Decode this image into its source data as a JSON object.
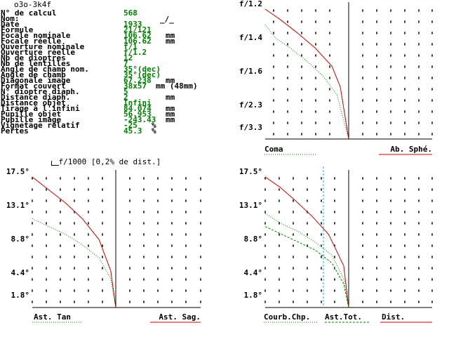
{
  "title": "o3o-3k4f",
  "signature_mark": "_/_",
  "info_rows": [
    {
      "label": "N° de calcul",
      "value": "568",
      "unit": ""
    },
    {
      "label": "Nom:",
      "value": "",
      "unit": ""
    },
    {
      "label": "Date",
      "value": "1933",
      "unit": ""
    },
    {
      "label": "Formule",
      "value": "21/121",
      "unit": ""
    },
    {
      "label": "Focale nominale",
      "value": "106.62",
      "unit": "mm"
    },
    {
      "label": "Focale réelle",
      "value": "106.62",
      "unit": "mm"
    },
    {
      "label": "Ouverture nominale",
      "value": "f/1",
      "unit": ""
    },
    {
      "label": "Ouverture réelle",
      "value": "f/1.2",
      "unit": ""
    },
    {
      "label": "Nb de dioptres",
      "value": "12",
      "unit": ""
    },
    {
      "label": "Nb de lentilles",
      "value": "7",
      "unit": ""
    },
    {
      "label": "Angle de champ nom.",
      "value": "35°(dec)",
      "unit": ""
    },
    {
      "label": "Angle de champ",
      "value": "35°(dec)",
      "unit": ""
    },
    {
      "label": "Diagonale image",
      "value": "67.238",
      "unit": "mm"
    },
    {
      "label": "Format couvert",
      "value": "38x57",
      "unit": "mm (48mm)"
    },
    {
      "label": "N° dioptre diaph.",
      "value": "5",
      "unit": ""
    },
    {
      "label": "Distance diaph.",
      "value": "2",
      "unit": "mm"
    },
    {
      "label": "Distance objet",
      "value": "Infini",
      "unit": ""
    },
    {
      "label": "Tirage à l'infini",
      "value": "84.074",
      "unit": "mm"
    },
    {
      "label": "Pupille objet",
      "value": "56.953",
      "unit": "mm"
    },
    {
      "label": "Pupille image",
      "value": "-243.43",
      "unit": "mm"
    },
    {
      "label": "Vignetage relatif",
      "value": "-25",
      "unit": "%"
    },
    {
      "label": "Pertes",
      "value": "45.3",
      "unit": "%"
    }
  ],
  "scale_note": "f/1000 [0,2% de dist.]",
  "colors": {
    "grid_dot": "#000000",
    "axis": "#000000",
    "red_curve": "#cc0000",
    "green_dotted": "#008000",
    "cyan_line": "#00bcd4",
    "label_text": "#000000",
    "value_text": "#008000"
  },
  "plots": {
    "aperture": {
      "y_labels": [
        "f/1.2",
        "f/1.4",
        "f/1.6",
        "f/2.3",
        "f/3.3"
      ],
      "legend_left": "Coma",
      "legend_right": "Ab. Sphé.",
      "series": [
        {
          "name": "Ab. Sphé.",
          "color": "red_curve",
          "style": "solid",
          "x": [
            -1.0,
            -0.82,
            -0.62,
            -0.4,
            -0.2,
            -0.1,
            0.0
          ],
          "y": [
            1.0,
            0.92,
            0.82,
            0.7,
            0.56,
            0.4,
            0.0
          ]
        },
        {
          "name": "Coma",
          "color": "green_dotted",
          "style": "dotted",
          "x": [
            -1.0,
            -0.88,
            -0.7,
            -0.5,
            -0.3,
            -0.14,
            0.0
          ],
          "y": [
            0.88,
            0.78,
            0.7,
            0.6,
            0.48,
            0.34,
            0.0
          ]
        }
      ]
    },
    "astig": {
      "y_labels": [
        "17.5°",
        "13.1°",
        "8.8°",
        "4.4°",
        "1.8°"
      ],
      "legend_left": "Ast. Tan",
      "legend_right": "Ast. Sag.",
      "series": [
        {
          "name": "Ast. Sag.",
          "color": "red_curve",
          "style": "solid",
          "x": [
            -1.0,
            -0.8,
            -0.6,
            -0.4,
            -0.2,
            -0.06,
            0.0
          ],
          "y": [
            1.0,
            0.9,
            0.8,
            0.68,
            0.52,
            0.28,
            0.0
          ]
        },
        {
          "name": "Ast. Tan",
          "color": "green_dotted",
          "style": "dotted",
          "x": [
            -1.0,
            -0.8,
            -0.6,
            -0.4,
            -0.2,
            -0.06,
            0.0
          ],
          "y": [
            0.68,
            0.62,
            0.56,
            0.48,
            0.38,
            0.22,
            0.0
          ]
        }
      ]
    },
    "field": {
      "y_labels": [
        "17.5°",
        "13.1°",
        "8.8°",
        "4.4°",
        "1.8°"
      ],
      "legend_left": "Courb.Chp.",
      "legend_mid": "Ast.Tot.",
      "legend_right": "Dist.",
      "series": [
        {
          "name": "Dist.",
          "color": "red_curve",
          "style": "solid",
          "x": [
            -1.0,
            -0.82,
            -0.64,
            -0.44,
            -0.24,
            -0.06,
            0.0
          ],
          "y": [
            1.0,
            0.92,
            0.82,
            0.7,
            0.56,
            0.32,
            0.0
          ]
        },
        {
          "name": "Courb.Chp.",
          "color": "green_dotted",
          "style": "dotted",
          "x": [
            -1.0,
            -0.8,
            -0.6,
            -0.4,
            -0.2,
            -0.06,
            0.0
          ],
          "y": [
            0.72,
            0.64,
            0.58,
            0.5,
            0.4,
            0.22,
            0.0
          ]
        },
        {
          "name": "Ast.Tot.",
          "color": "green_dotted",
          "style": "dashed",
          "x": [
            -1.0,
            -0.8,
            -0.6,
            -0.4,
            -0.2,
            -0.06,
            0.0
          ],
          "y": [
            0.62,
            0.56,
            0.5,
            0.44,
            0.34,
            0.18,
            0.0
          ]
        }
      ]
    }
  }
}
